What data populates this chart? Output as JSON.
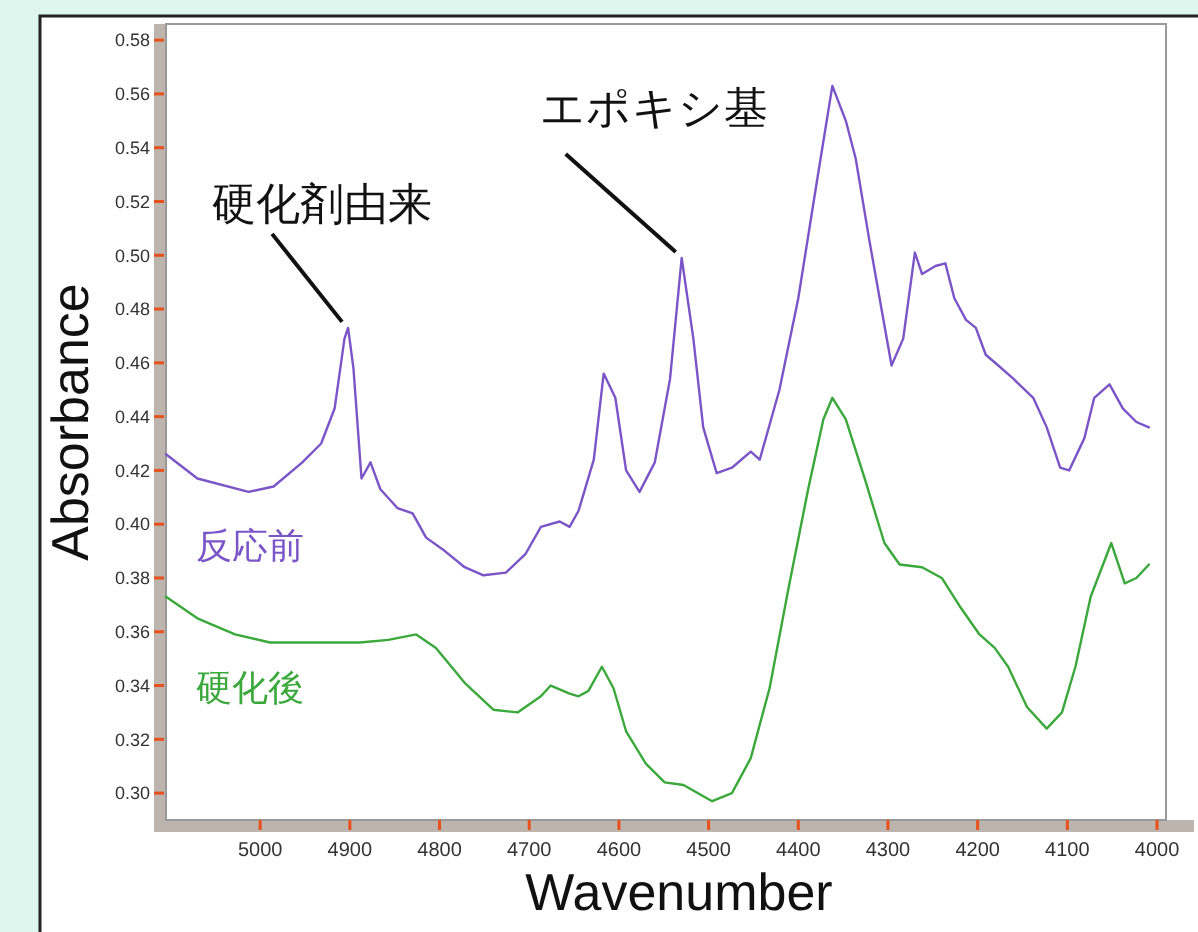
{
  "chart_data": {
    "type": "line",
    "xlabel": "Wavenumber",
    "ylabel": "Absorbance",
    "xlim": [
      5105,
      3990
    ],
    "ylim": [
      0.29,
      0.586
    ],
    "xticks": [
      5000,
      4900,
      4800,
      4700,
      4600,
      4500,
      4400,
      4300,
      4200,
      4100,
      4000
    ],
    "yticks": [
      {
        "value": 0.3,
        "label": "0.30"
      },
      {
        "value": 0.32,
        "label": "0.32"
      },
      {
        "value": 0.34,
        "label": "0.34"
      },
      {
        "value": 0.36,
        "label": "0.36"
      },
      {
        "value": 0.38,
        "label": "0.38"
      },
      {
        "value": 0.4,
        "label": "0.40"
      },
      {
        "value": 0.42,
        "label": "0.42"
      },
      {
        "value": 0.44,
        "label": "0.44"
      },
      {
        "value": 0.46,
        "label": "0.46"
      },
      {
        "value": 0.48,
        "label": "0.48"
      },
      {
        "value": 0.5,
        "label": "0.50"
      },
      {
        "value": 0.52,
        "label": "0.52"
      },
      {
        "value": 0.54,
        "label": "0.54"
      },
      {
        "value": 0.56,
        "label": "0.56"
      },
      {
        "value": 0.58,
        "label": "0.58"
      }
    ],
    "grid": false,
    "legend": false,
    "marker": "none",
    "line_style": "solid",
    "annotations": [
      {
        "text": "硬化剤由来",
        "x": 4902,
        "y": 0.473
      },
      {
        "text": "エポキシ基",
        "x": 4530,
        "y": 0.499
      }
    ],
    "series": [
      {
        "name": "反応前",
        "color": "#7b55c8",
        "x": [
          5105,
          5070,
          5013,
          4985,
          4953,
          4932,
          4917,
          4906,
          4902,
          4896,
          4887,
          4877,
          4866,
          4847,
          4830,
          4815,
          4794,
          4772,
          4751,
          4726,
          4704,
          4687,
          4666,
          4655,
          4645,
          4628,
          4617,
          4604,
          4592,
          4577,
          4560,
          4543,
          4530,
          4517,
          4506,
          4491,
          4474,
          4453,
          4443,
          4421,
          4400,
          4379,
          4362,
          4347,
          4336,
          4321,
          4304,
          4296,
          4283,
          4270,
          4262,
          4247,
          4236,
          4226,
          4213,
          4202,
          4191,
          4177,
          4160,
          4138,
          4123,
          4108,
          4098,
          4081,
          4070,
          4053,
          4038,
          4023,
          4009
        ],
        "values": [
          0.426,
          0.417,
          0.412,
          0.414,
          0.423,
          0.43,
          0.443,
          0.469,
          0.473,
          0.458,
          0.417,
          0.423,
          0.413,
          0.406,
          0.404,
          0.395,
          0.39,
          0.384,
          0.381,
          0.382,
          0.389,
          0.399,
          0.401,
          0.399,
          0.405,
          0.424,
          0.456,
          0.447,
          0.42,
          0.412,
          0.423,
          0.454,
          0.499,
          0.469,
          0.436,
          0.419,
          0.421,
          0.427,
          0.424,
          0.45,
          0.484,
          0.528,
          0.563,
          0.55,
          0.536,
          0.506,
          0.474,
          0.459,
          0.469,
          0.501,
          0.493,
          0.496,
          0.497,
          0.484,
          0.476,
          0.473,
          0.463,
          0.459,
          0.454,
          0.447,
          0.436,
          0.421,
          0.42,
          0.432,
          0.447,
          0.452,
          0.443,
          0.438,
          0.436
        ]
      },
      {
        "name": "硬化後",
        "color": "#3aa83a",
        "x": [
          5105,
          5070,
          5028,
          4989,
          4943,
          4889,
          4857,
          4826,
          4804,
          4772,
          4740,
          4713,
          4687,
          4676,
          4655,
          4645,
          4634,
          4619,
          4606,
          4592,
          4570,
          4549,
          4528,
          4496,
          4474,
          4453,
          4432,
          4411,
          4389,
          4372,
          4362,
          4347,
          4326,
          4304,
          4287,
          4262,
          4240,
          4219,
          4198,
          4181,
          4166,
          4145,
          4123,
          4106,
          4091,
          4074,
          4051,
          4036,
          4023,
          4009
        ],
        "values": [
          0.373,
          0.365,
          0.359,
          0.356,
          0.356,
          0.356,
          0.357,
          0.359,
          0.354,
          0.341,
          0.331,
          0.33,
          0.336,
          0.34,
          0.337,
          0.336,
          0.338,
          0.347,
          0.339,
          0.323,
          0.311,
          0.304,
          0.303,
          0.297,
          0.3,
          0.313,
          0.339,
          0.376,
          0.413,
          0.439,
          0.447,
          0.439,
          0.417,
          0.393,
          0.385,
          0.384,
          0.38,
          0.369,
          0.359,
          0.354,
          0.347,
          0.332,
          0.324,
          0.33,
          0.347,
          0.373,
          0.393,
          0.378,
          0.38,
          0.385
        ]
      }
    ]
  }
}
